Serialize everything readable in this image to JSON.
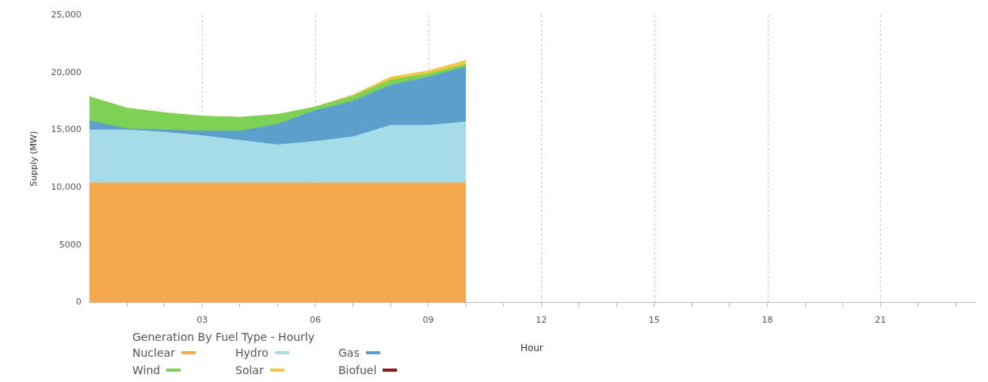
{
  "chart_data": {
    "type": "area",
    "stacked": true,
    "xlabel": "Hour",
    "ylabel": "Supply (MW)",
    "legend_title": "Generation By Fuel Type - Hourly",
    "legend": "bottom left",
    "grid": "x",
    "x": [
      0,
      1,
      2,
      3,
      4,
      5,
      6,
      7,
      8,
      9,
      10
    ],
    "xlim": [
      0,
      23.5
    ],
    "xticks": [
      {
        "value": 1,
        "label": null
      },
      {
        "value": 2,
        "label": null
      },
      {
        "value": 3,
        "label": "03"
      },
      {
        "value": 4,
        "label": null
      },
      {
        "value": 5,
        "label": null
      },
      {
        "value": 6,
        "label": "06"
      },
      {
        "value": 7,
        "label": null
      },
      {
        "value": 8,
        "label": null
      },
      {
        "value": 9,
        "label": "09"
      },
      {
        "value": 10,
        "label": null
      },
      {
        "value": 11,
        "label": null
      },
      {
        "value": 12,
        "label": "12"
      },
      {
        "value": 13,
        "label": null
      },
      {
        "value": 14,
        "label": null
      },
      {
        "value": 15,
        "label": "15"
      },
      {
        "value": 16,
        "label": null
      },
      {
        "value": 17,
        "label": null
      },
      {
        "value": 18,
        "label": "18"
      },
      {
        "value": 19,
        "label": null
      },
      {
        "value": 20,
        "label": null
      },
      {
        "value": 21,
        "label": "21"
      },
      {
        "value": 22,
        "label": null
      },
      {
        "value": 23,
        "label": null
      }
    ],
    "ylim": [
      0,
      25000
    ],
    "yticks": [
      0,
      5000,
      {
        "value": 10000,
        "label": "10,000"
      },
      {
        "value": 15000,
        "label": "15,000"
      },
      {
        "value": 20000,
        "label": "20,000"
      },
      {
        "value": 25000,
        "label": "25,000"
      }
    ],
    "series": [
      {
        "name": "Nuclear",
        "color": "#f5a94e",
        "values": [
          10400,
          10400,
          10400,
          10400,
          10400,
          10400,
          10400,
          10400,
          10400,
          10400,
          10400
        ]
      },
      {
        "name": "Hydro",
        "color": "#a6dbe8",
        "values": [
          4600,
          4600,
          4400,
          4100,
          3700,
          3300,
          3600,
          4000,
          5000,
          5000,
          5300
        ]
      },
      {
        "name": "Gas",
        "color": "#5b9fcc",
        "values": [
          800,
          100,
          200,
          400,
          800,
          1800,
          2700,
          3100,
          3500,
          4200,
          4800
        ]
      },
      {
        "name": "Wind",
        "color": "#7dd155",
        "values": [
          2100,
          1800,
          1500,
          1300,
          1200,
          850,
          300,
          450,
          450,
          300,
          200
        ]
      },
      {
        "name": "Solar",
        "color": "#f5c842",
        "values": [
          0,
          0,
          0,
          0,
          0,
          0,
          0,
          100,
          250,
          250,
          350
        ]
      },
      {
        "name": "Biofuel",
        "color": "#8b1a1a",
        "values": [
          null,
          null,
          null,
          null,
          null,
          null,
          null,
          null,
          null,
          null,
          null
        ]
      }
    ]
  }
}
